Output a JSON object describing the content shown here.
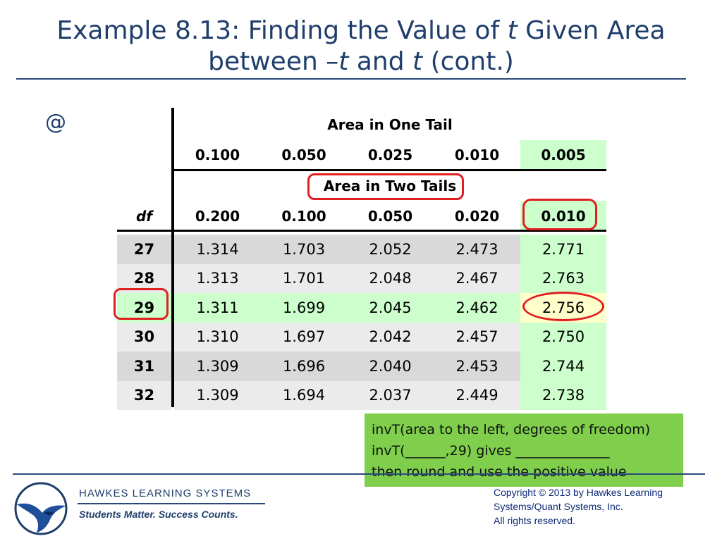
{
  "slide": {
    "title_part1": "Example 8.13: Finding the Value of ",
    "title_t1": "t",
    "title_part2": " Given Area",
    "title_line2_a": "between –",
    "title_t2": "t",
    "title_line2_b": " and ",
    "title_t3": "t",
    "title_line2_c": " (cont.)",
    "at_symbol": "@"
  },
  "table": {
    "one_tail_title": "Area in One Tail",
    "one_tail_values": [
      "0.100",
      "0.050",
      "0.025",
      "0.010",
      "0.005"
    ],
    "two_tails_title": "Area in Two Tails",
    "df_label": "df",
    "two_tails_values": [
      "0.200",
      "0.100",
      "0.050",
      "0.020",
      "0.010"
    ],
    "rows": [
      {
        "df": "27",
        "values": [
          "1.314",
          "1.703",
          "2.052",
          "2.473",
          "2.771"
        ]
      },
      {
        "df": "28",
        "values": [
          "1.313",
          "1.701",
          "2.048",
          "2.467",
          "2.763"
        ]
      },
      {
        "df": "29",
        "values": [
          "1.311",
          "1.699",
          "2.045",
          "2.462",
          "2.756"
        ]
      },
      {
        "df": "30",
        "values": [
          "1.310",
          "1.697",
          "2.042",
          "2.457",
          "2.750"
        ]
      },
      {
        "df": "31",
        "values": [
          "1.309",
          "1.696",
          "2.040",
          "2.453",
          "2.744"
        ]
      },
      {
        "df": "32",
        "values": [
          "1.309",
          "1.694",
          "2.037",
          "2.449",
          "2.738"
        ]
      }
    ],
    "highlight_row_index": 2,
    "highlight_col_index": 4
  },
  "note": {
    "line1": "invT(area to the left, degrees of freedom)",
    "line2": "invT(______,29) gives ______________",
    "line3": "then round and use the positive value"
  },
  "footer": {
    "brand": "HAWKES  LEARNING  SYSTEMS",
    "tagline": "Students Matter. Success Counts.",
    "copyright_line1": "Copyright © 2013 by Hawkes Learning",
    "copyright_line2": "Systems/Quant Systems, Inc.",
    "copyright_line3": "All rights reserved."
  },
  "colors": {
    "title": "#1f3e6b",
    "highlight_green": "#ccffcc",
    "highlight_yellow": "#ffffcc",
    "circle_red": "#e02020",
    "note_bg": "#7fcf4c"
  }
}
